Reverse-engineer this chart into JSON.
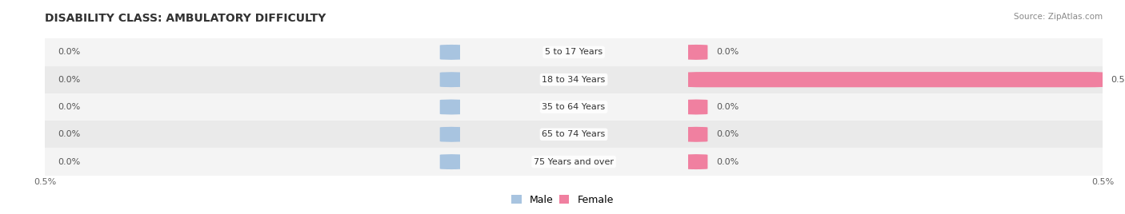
{
  "title": "DISABILITY CLASS: AMBULATORY DIFFICULTY",
  "source": "Source: ZipAtlas.com",
  "categories": [
    "5 to 17 Years",
    "18 to 34 Years",
    "35 to 64 Years",
    "65 to 74 Years",
    "75 Years and over"
  ],
  "male_values": [
    0.0,
    0.0,
    0.0,
    0.0,
    0.0
  ],
  "female_values": [
    0.0,
    0.5,
    0.0,
    0.0,
    0.0
  ],
  "male_color": "#a8c4e0",
  "female_color": "#f080a0",
  "axis_limit": 0.5,
  "title_fontsize": 10,
  "background_color": "#ffffff",
  "legend_male": "Male",
  "legend_female": "Female",
  "row_colors": [
    "#f4f4f4",
    "#eaeaea"
  ],
  "label_fontsize": 8,
  "value_fontsize": 8,
  "source_fontsize": 7.5
}
